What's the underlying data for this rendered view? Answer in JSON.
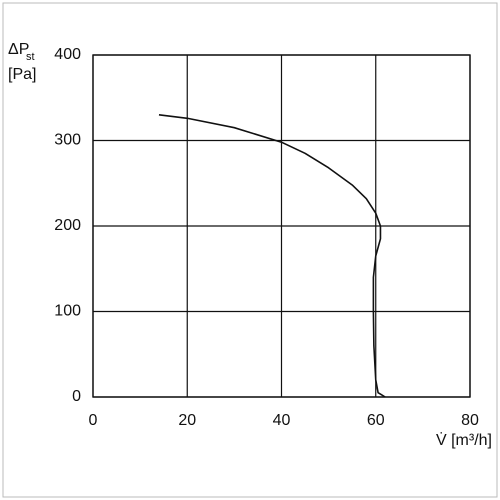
{
  "chart_data": {
    "type": "line",
    "y_label": "ΔP",
    "y_label_sub": "st",
    "y_label_unit": "[Pa]",
    "x_label": "V̇ [m³/h]",
    "x": [
      14,
      20,
      30,
      40,
      45,
      50,
      55,
      58,
      60,
      61,
      61,
      60,
      59.5,
      59.5,
      59.6,
      60,
      60.5,
      62
    ],
    "values": [
      330,
      326,
      315,
      298,
      285,
      268,
      248,
      232,
      215,
      200,
      185,
      165,
      140,
      100,
      60,
      20,
      5,
      0
    ],
    "color": "#111111",
    "xlim": [
      0,
      80
    ],
    "xticks": [
      0,
      20,
      40,
      60,
      80
    ],
    "ylim": [
      0,
      400
    ],
    "yticks": [
      0,
      100,
      200,
      300,
      400
    ],
    "grid": true
  }
}
